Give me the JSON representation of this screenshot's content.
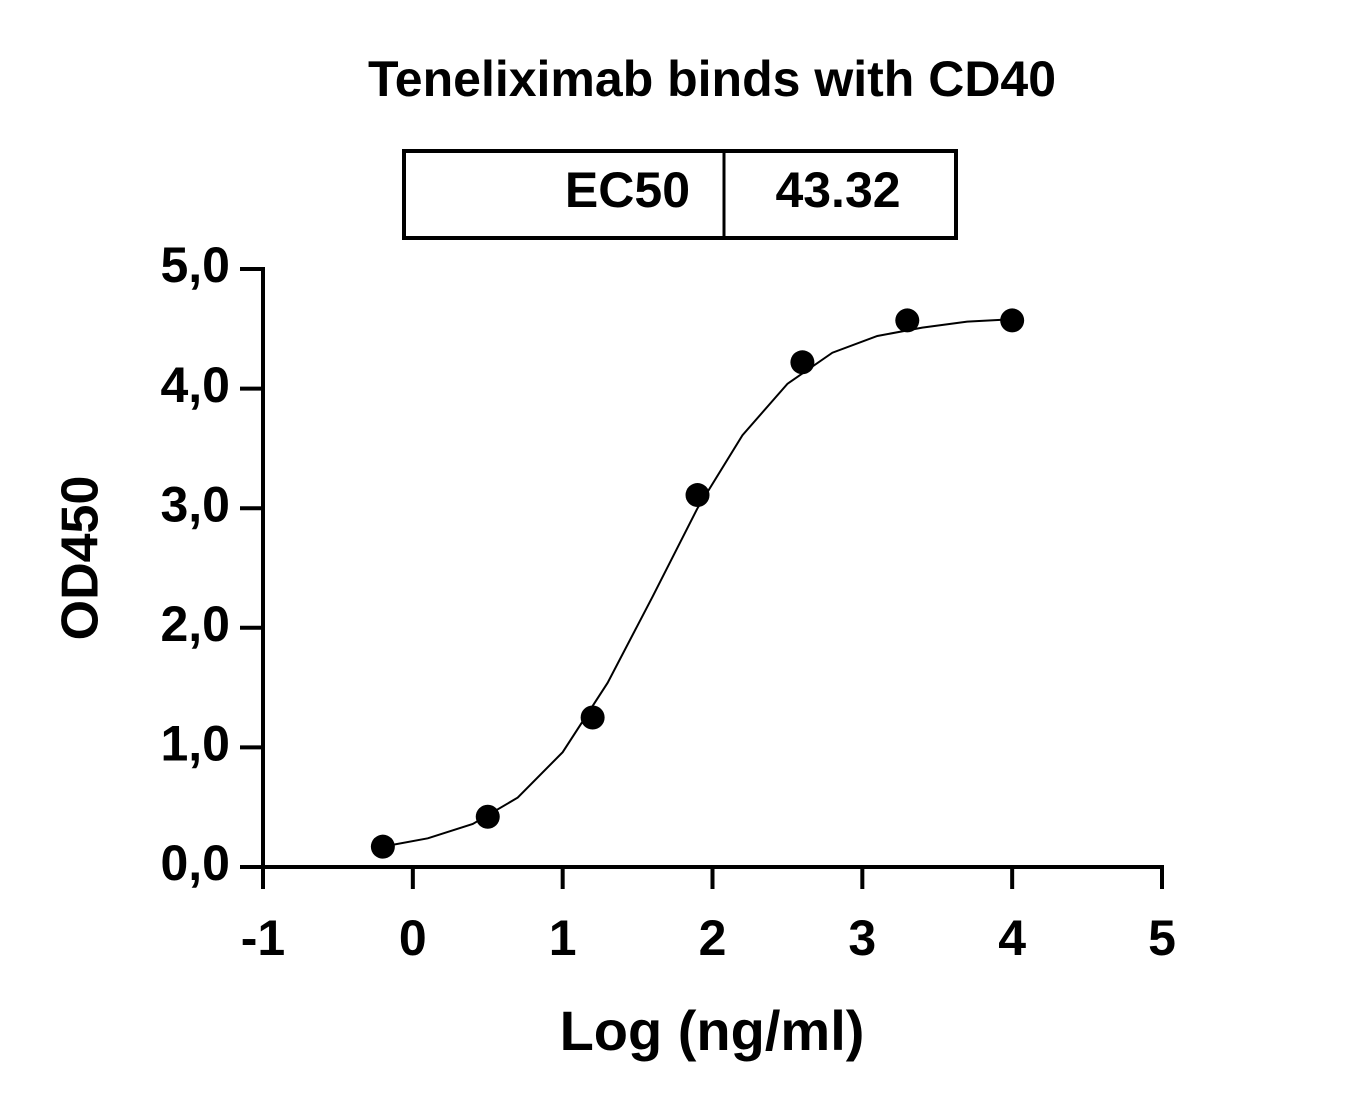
{
  "chart_data": {
    "type": "scatter",
    "title": "Teneliximab binds with CD40",
    "ec50_table": {
      "label": "EC50",
      "value": "43.32"
    },
    "x_label": "Log (ng/ml)",
    "y_label": "OD450",
    "xlim": [
      -1,
      5
    ],
    "xticks": [
      -1,
      0,
      1,
      2,
      3,
      4,
      5
    ],
    "ylim": [
      0,
      5
    ],
    "yticks": [
      {
        "value": 0,
        "label": "0,0"
      },
      {
        "value": 1,
        "label": "1,0"
      },
      {
        "value": 2,
        "label": "2,0"
      },
      {
        "value": 3,
        "label": "3,0"
      },
      {
        "value": 4,
        "label": "4,0"
      },
      {
        "value": 5,
        "label": "5,0"
      }
    ],
    "series": [
      {
        "type": "scatter",
        "color": "#000000",
        "x": [
          -0.2,
          0.5,
          1.2,
          1.9,
          2.6,
          3.3,
          4.0
        ],
        "values": [
          0.17,
          0.42,
          1.25,
          3.11,
          4.22,
          4.57,
          4.57
        ]
      },
      {
        "type": "line",
        "color": "#000000",
        "x": [
          -0.2,
          0.1,
          0.4,
          0.7,
          1.0,
          1.3,
          1.6,
          1.9,
          2.2,
          2.5,
          2.8,
          3.1,
          3.4,
          3.7,
          4.0
        ],
        "values": [
          0.17,
          0.24,
          0.36,
          0.58,
          0.96,
          1.54,
          2.26,
          3.0,
          3.61,
          4.04,
          4.3,
          4.44,
          4.51,
          4.56,
          4.58
        ]
      }
    ]
  }
}
